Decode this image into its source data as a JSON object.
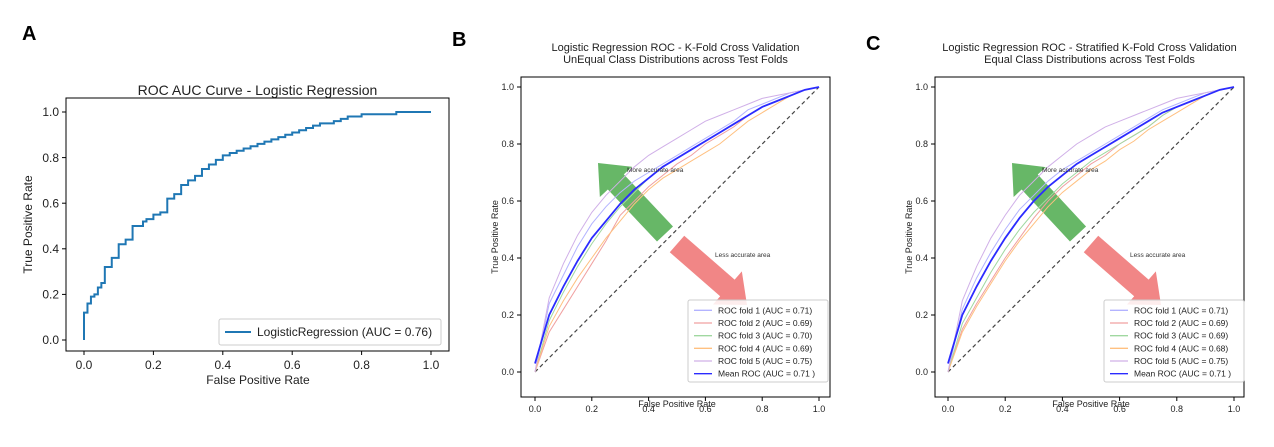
{
  "figure": {
    "panel_labels": [
      "A",
      "B",
      "C"
    ],
    "colors": {
      "curve_a": "#1f77b4",
      "fold1": "#b3b3ff",
      "fold2": "#f0a0a0",
      "fold3": "#a0d8a0",
      "fold4": "#ffc080",
      "fold5": "#d0b0e8",
      "mean": "#2b2bff",
      "chance": "#444444",
      "arrow_green": "#5fb35f",
      "arrow_red": "#f08080"
    }
  },
  "chart_data": [
    {
      "type": "line",
      "panel": "A",
      "title": "ROC AUC Curve - Logistic Regression",
      "xlabel": "False Positive Rate",
      "ylabel": "True Positive Rate",
      "xlim": [
        0,
        1
      ],
      "ylim": [
        0,
        1
      ],
      "xticks": [
        "0.0",
        "0.2",
        "0.4",
        "0.6",
        "0.8",
        "1.0"
      ],
      "yticks": [
        "0.0",
        "0.2",
        "0.4",
        "0.6",
        "0.8",
        "1.0"
      ],
      "grid": false,
      "legend_position": "lower-right",
      "series": [
        {
          "name": "LogisticRegression (AUC = 0.76)",
          "x": [
            0,
            0,
            0.01,
            0.01,
            0.02,
            0.02,
            0.03,
            0.04,
            0.05,
            0.06,
            0.06,
            0.08,
            0.08,
            0.1,
            0.1,
            0.12,
            0.14,
            0.14,
            0.17,
            0.18,
            0.2,
            0.22,
            0.24,
            0.24,
            0.26,
            0.28,
            0.28,
            0.3,
            0.32,
            0.34,
            0.36,
            0.38,
            0.4,
            0.42,
            0.44,
            0.46,
            0.48,
            0.5,
            0.52,
            0.54,
            0.56,
            0.58,
            0.6,
            0.62,
            0.64,
            0.66,
            0.68,
            0.7,
            0.72,
            0.74,
            0.76,
            0.78,
            0.8,
            0.82,
            0.84,
            0.86,
            0.9,
            0.95,
            1.0
          ],
          "y": [
            0,
            0.12,
            0.13,
            0.16,
            0.17,
            0.19,
            0.2,
            0.23,
            0.25,
            0.29,
            0.32,
            0.34,
            0.36,
            0.4,
            0.42,
            0.44,
            0.47,
            0.5,
            0.52,
            0.53,
            0.55,
            0.56,
            0.6,
            0.62,
            0.64,
            0.66,
            0.68,
            0.7,
            0.72,
            0.75,
            0.77,
            0.79,
            0.81,
            0.82,
            0.83,
            0.84,
            0.85,
            0.86,
            0.87,
            0.88,
            0.89,
            0.9,
            0.91,
            0.92,
            0.93,
            0.94,
            0.95,
            0.95,
            0.96,
            0.97,
            0.98,
            0.98,
            0.99,
            0.99,
            0.99,
            0.99,
            1.0,
            1.0,
            1.0
          ]
        }
      ]
    },
    {
      "type": "line",
      "panel": "B",
      "title": "Logistic Regression ROC - K-Fold Cross Validation",
      "subtitle": "UnEqual Class Distributions across Test Folds",
      "xlabel": "False Positive Rate",
      "ylabel": "True Positive Rate",
      "xlim": [
        0,
        1
      ],
      "ylim": [
        0,
        1
      ],
      "xticks": [
        "0.0",
        "0.2",
        "0.4",
        "0.6",
        "0.8",
        "1.0"
      ],
      "yticks": [
        "0.0",
        "0.2",
        "0.4",
        "0.6",
        "0.8",
        "1.0"
      ],
      "grid": false,
      "legend_position": "lower-right",
      "annotations": [
        "More accurate area",
        "Less accurate area"
      ],
      "series": [
        {
          "name": "ROC fold 1 (AUC = 0.71)",
          "x": [
            0,
            0.05,
            0.1,
            0.15,
            0.2,
            0.25,
            0.3,
            0.35,
            0.4,
            0.45,
            0.5,
            0.55,
            0.6,
            0.65,
            0.7,
            0.75,
            0.8,
            0.85,
            0.9,
            0.95,
            1.0
          ],
          "y": [
            0,
            0.24,
            0.34,
            0.44,
            0.52,
            0.58,
            0.63,
            0.67,
            0.7,
            0.73,
            0.76,
            0.79,
            0.82,
            0.85,
            0.88,
            0.92,
            0.94,
            0.96,
            0.98,
            0.99,
            1.0
          ]
        },
        {
          "name": "ROC fold 2 (AUC = 0.69)",
          "x": [
            0,
            0.05,
            0.1,
            0.15,
            0.2,
            0.25,
            0.3,
            0.35,
            0.4,
            0.45,
            0.5,
            0.55,
            0.6,
            0.65,
            0.7,
            0.75,
            0.8,
            0.85,
            0.9,
            0.95,
            1.0
          ],
          "y": [
            0,
            0.14,
            0.22,
            0.3,
            0.38,
            0.46,
            0.55,
            0.6,
            0.65,
            0.69,
            0.73,
            0.76,
            0.8,
            0.83,
            0.86,
            0.9,
            0.93,
            0.95,
            0.97,
            0.99,
            1.0
          ]
        },
        {
          "name": "ROC fold 3 (AUC = 0.70)",
          "x": [
            0,
            0.05,
            0.1,
            0.15,
            0.2,
            0.25,
            0.3,
            0.35,
            0.4,
            0.45,
            0.5,
            0.55,
            0.6,
            0.65,
            0.7,
            0.75,
            0.8,
            0.85,
            0.9,
            0.95,
            1.0
          ],
          "y": [
            0,
            0.18,
            0.28,
            0.37,
            0.45,
            0.52,
            0.58,
            0.63,
            0.68,
            0.72,
            0.75,
            0.78,
            0.81,
            0.84,
            0.87,
            0.9,
            0.93,
            0.95,
            0.97,
            0.99,
            1.0
          ]
        },
        {
          "name": "ROC fold 4 (AUC = 0.69)",
          "x": [
            0,
            0.05,
            0.1,
            0.15,
            0.2,
            0.25,
            0.3,
            0.35,
            0.4,
            0.45,
            0.5,
            0.55,
            0.6,
            0.65,
            0.7,
            0.75,
            0.8,
            0.85,
            0.9,
            0.95,
            1.0
          ],
          "y": [
            0,
            0.16,
            0.25,
            0.33,
            0.4,
            0.47,
            0.53,
            0.59,
            0.64,
            0.68,
            0.71,
            0.74,
            0.77,
            0.8,
            0.84,
            0.88,
            0.91,
            0.94,
            0.97,
            0.99,
            1.0
          ]
        },
        {
          "name": "ROC fold 5 (AUC = 0.75)",
          "x": [
            0,
            0.05,
            0.1,
            0.15,
            0.2,
            0.25,
            0.3,
            0.35,
            0.4,
            0.45,
            0.5,
            0.55,
            0.6,
            0.65,
            0.7,
            0.75,
            0.8,
            0.85,
            0.9,
            0.95,
            1.0
          ],
          "y": [
            0,
            0.26,
            0.38,
            0.48,
            0.56,
            0.62,
            0.67,
            0.72,
            0.76,
            0.79,
            0.82,
            0.85,
            0.88,
            0.9,
            0.92,
            0.94,
            0.96,
            0.97,
            0.98,
            0.99,
            1.0
          ]
        },
        {
          "name": "Mean ROC (AUC = 0.71 )",
          "x": [
            0,
            0.05,
            0.1,
            0.15,
            0.2,
            0.25,
            0.3,
            0.35,
            0.4,
            0.45,
            0.5,
            0.55,
            0.6,
            0.65,
            0.7,
            0.75,
            0.8,
            0.85,
            0.9,
            0.95,
            1.0
          ],
          "y": [
            0.03,
            0.2,
            0.3,
            0.39,
            0.47,
            0.53,
            0.59,
            0.64,
            0.68,
            0.72,
            0.75,
            0.78,
            0.81,
            0.84,
            0.87,
            0.9,
            0.93,
            0.95,
            0.97,
            0.99,
            1.0
          ]
        }
      ]
    },
    {
      "type": "line",
      "panel": "C",
      "title": "Logistic Regression ROC - Stratified K-Fold Cross Validation",
      "subtitle": "Equal Class Distributions across Test Folds",
      "xlabel": "False Positive Rate",
      "ylabel": "True Positive Rate",
      "xlim": [
        0,
        1
      ],
      "ylim": [
        0,
        1
      ],
      "xticks": [
        "0.0",
        "0.2",
        "0.4",
        "0.6",
        "0.8",
        "1.0"
      ],
      "yticks": [
        "0.0",
        "0.2",
        "0.4",
        "0.6",
        "0.8",
        "1.0"
      ],
      "grid": false,
      "legend_position": "lower-right",
      "annotations": [
        "More accurate area",
        "Less accurate area"
      ],
      "series": [
        {
          "name": "ROC fold 1 (AUC = 0.71)",
          "x": [
            0,
            0.05,
            0.1,
            0.15,
            0.2,
            0.25,
            0.3,
            0.35,
            0.4,
            0.45,
            0.5,
            0.55,
            0.6,
            0.65,
            0.7,
            0.75,
            0.8,
            0.85,
            0.9,
            0.95,
            1.0
          ],
          "y": [
            0,
            0.22,
            0.33,
            0.42,
            0.5,
            0.57,
            0.62,
            0.67,
            0.71,
            0.74,
            0.77,
            0.8,
            0.83,
            0.86,
            0.89,
            0.92,
            0.94,
            0.96,
            0.98,
            0.99,
            1.0
          ]
        },
        {
          "name": "ROC fold 2 (AUC = 0.69)",
          "x": [
            0,
            0.05,
            0.1,
            0.15,
            0.2,
            0.25,
            0.3,
            0.35,
            0.4,
            0.45,
            0.5,
            0.55,
            0.6,
            0.65,
            0.7,
            0.75,
            0.8,
            0.85,
            0.9,
            0.95,
            1.0
          ],
          "y": [
            0,
            0.15,
            0.24,
            0.32,
            0.4,
            0.47,
            0.54,
            0.6,
            0.65,
            0.69,
            0.73,
            0.76,
            0.8,
            0.83,
            0.86,
            0.9,
            0.93,
            0.95,
            0.97,
            0.99,
            1.0
          ]
        },
        {
          "name": "ROC fold 3 (AUC = 0.69)",
          "x": [
            0,
            0.05,
            0.1,
            0.15,
            0.2,
            0.25,
            0.3,
            0.35,
            0.4,
            0.45,
            0.5,
            0.55,
            0.6,
            0.65,
            0.7,
            0.75,
            0.8,
            0.85,
            0.9,
            0.95,
            1.0
          ],
          "y": [
            0,
            0.17,
            0.26,
            0.35,
            0.43,
            0.5,
            0.56,
            0.61,
            0.66,
            0.7,
            0.74,
            0.77,
            0.8,
            0.83,
            0.86,
            0.9,
            0.93,
            0.95,
            0.97,
            0.99,
            1.0
          ]
        },
        {
          "name": "ROC fold 4 (AUC = 0.68)",
          "x": [
            0,
            0.05,
            0.1,
            0.15,
            0.2,
            0.25,
            0.3,
            0.35,
            0.4,
            0.45,
            0.5,
            0.55,
            0.6,
            0.65,
            0.7,
            0.75,
            0.8,
            0.85,
            0.9,
            0.95,
            1.0
          ],
          "y": [
            0,
            0.14,
            0.23,
            0.31,
            0.39,
            0.46,
            0.52,
            0.58,
            0.63,
            0.67,
            0.71,
            0.74,
            0.78,
            0.81,
            0.85,
            0.88,
            0.91,
            0.94,
            0.97,
            0.99,
            1.0
          ]
        },
        {
          "name": "ROC fold 5 (AUC = 0.75)",
          "x": [
            0,
            0.05,
            0.1,
            0.15,
            0.2,
            0.25,
            0.3,
            0.35,
            0.4,
            0.45,
            0.5,
            0.55,
            0.6,
            0.65,
            0.7,
            0.75,
            0.8,
            0.85,
            0.9,
            0.95,
            1.0
          ],
          "y": [
            0,
            0.25,
            0.37,
            0.47,
            0.55,
            0.62,
            0.67,
            0.72,
            0.76,
            0.8,
            0.83,
            0.86,
            0.88,
            0.9,
            0.92,
            0.94,
            0.96,
            0.97,
            0.98,
            0.99,
            1.0
          ]
        },
        {
          "name": "Mean ROC (AUC = 0.71 )",
          "x": [
            0,
            0.05,
            0.1,
            0.15,
            0.2,
            0.25,
            0.3,
            0.35,
            0.4,
            0.45,
            0.5,
            0.55,
            0.6,
            0.65,
            0.7,
            0.75,
            0.8,
            0.85,
            0.9,
            0.95,
            1.0
          ],
          "y": [
            0.03,
            0.2,
            0.3,
            0.39,
            0.47,
            0.54,
            0.6,
            0.65,
            0.69,
            0.73,
            0.76,
            0.79,
            0.82,
            0.85,
            0.88,
            0.91,
            0.93,
            0.95,
            0.97,
            0.99,
            1.0
          ]
        }
      ]
    }
  ]
}
